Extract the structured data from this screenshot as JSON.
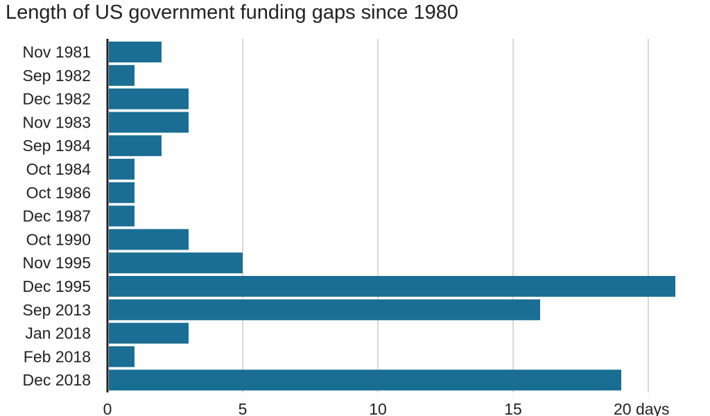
{
  "chart_data": {
    "type": "bar",
    "orientation": "horizontal",
    "title": "Length of US government funding gaps since 1980",
    "categories": [
      "Nov 1981",
      "Sep 1982",
      "Dec 1982",
      "Nov 1983",
      "Sep 1984",
      "Oct 1984",
      "Oct 1986",
      "Dec 1987",
      "Oct 1990",
      "Nov 1995",
      "Dec 1995",
      "Sep 2013",
      "Jan 2018",
      "Feb 2018",
      "Dec 2018"
    ],
    "values": [
      2,
      1,
      3,
      3,
      2,
      1,
      1,
      1,
      3,
      5,
      21,
      16,
      3,
      1,
      19
    ],
    "xlim": [
      0,
      21
    ],
    "x_ticks": [
      0,
      5,
      10,
      15,
      20
    ],
    "x_tick_labels": [
      "0",
      "5",
      "10",
      "15",
      "20 days"
    ],
    "grid": "vertical",
    "bar_color": "#1b6e93",
    "grid_color": "#cccccc",
    "axis_color": "#222222"
  }
}
